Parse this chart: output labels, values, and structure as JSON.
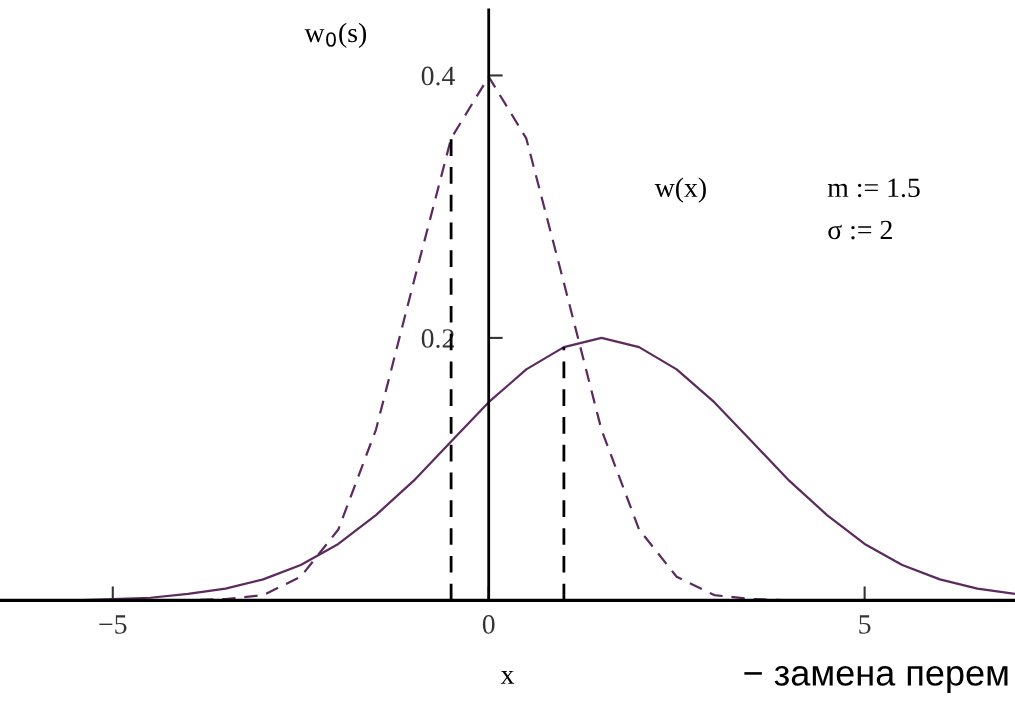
{
  "chart_data": {
    "type": "line",
    "xlabel": "x",
    "xlim": [
      -6.5,
      7
    ],
    "ylim": [
      0,
      0.45
    ],
    "xticks": [
      {
        "value": -5,
        "label": "−5"
      },
      0,
      5
    ],
    "yticks": [
      0.2,
      0.4
    ],
    "grid": false,
    "legend": false,
    "marker": "none",
    "series": [
      {
        "color": "#5b2a5e",
        "line_style": "solid",
        "x": [
          -6.5,
          -6,
          -5.5,
          -5,
          -4.5,
          -4,
          -3.5,
          -3,
          -2.5,
          -2,
          -1.5,
          -1,
          -0.5,
          0,
          0.5,
          1,
          1.5,
          2,
          2.5,
          3,
          3.5,
          4,
          4.5,
          5,
          5.5,
          6,
          6.5,
          7
        ],
        "values": [
          0.0,
          0.0,
          0.0,
          0.001,
          0.002,
          0.005,
          0.009,
          0.016,
          0.027,
          0.043,
          0.065,
          0.091,
          0.121,
          0.151,
          0.176,
          0.193,
          0.2,
          0.193,
          0.176,
          0.151,
          0.121,
          0.091,
          0.065,
          0.043,
          0.027,
          0.016,
          0.009,
          0.005
        ]
      },
      {
        "color": "#5b2a5e",
        "line_style": "dashed",
        "x": [
          -6.5,
          -4,
          -3.5,
          -3,
          -2.5,
          -2,
          -1.5,
          -1,
          -0.5,
          0,
          0.5,
          1,
          1.5,
          2,
          2.5,
          3,
          3.5,
          4,
          7
        ],
        "values": [
          0.0,
          0.0,
          0.001,
          0.004,
          0.018,
          0.054,
          0.13,
          0.242,
          0.352,
          0.399,
          0.352,
          0.242,
          0.13,
          0.054,
          0.018,
          0.004,
          0.001,
          0.0,
          0.0
        ]
      },
      {
        "color": "#000000",
        "line_style": "dashed",
        "x": [
          -0.5,
          -0.5
        ],
        "values": [
          0,
          0.352
        ]
      },
      {
        "color": "#000000",
        "line_style": "dashed",
        "x": [
          1,
          1
        ],
        "values": [
          0,
          0.193
        ]
      }
    ],
    "annotations": [
      "w$_{0}$(s)",
      "w(x)",
      "m := 1.5",
      "σ := 2",
      "− замена перем"
    ]
  }
}
